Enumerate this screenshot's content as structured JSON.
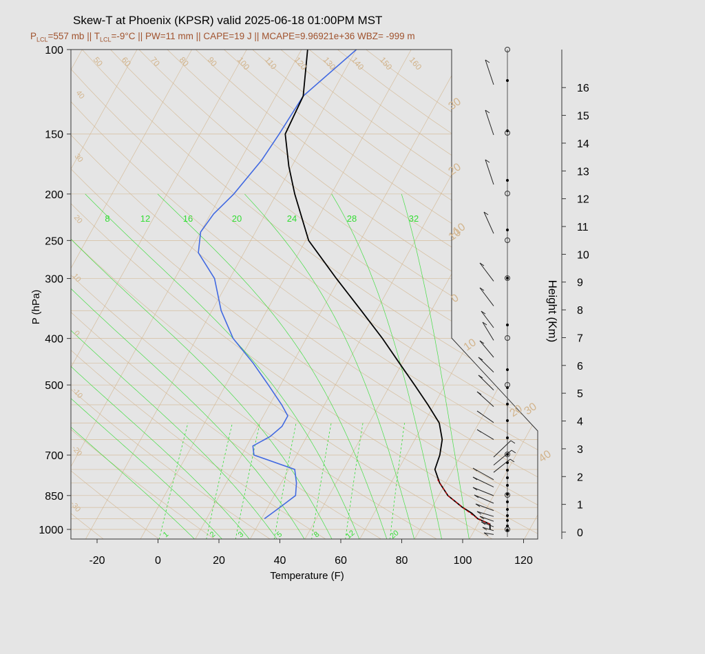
{
  "header": {
    "title": "Skew-T at Phoenix (KPSR) valid 2025-06-18 01:00PM MST",
    "subtitle": "P_LCL=557 mb || T_LCL=-9°C || PW=11 mm || CAPE=19 J || MCAPE=9.96921e+36 WBZ= -999 m"
  },
  "colors": {
    "background": "#e5e5e5",
    "isotherm_dry_adiabat": "#d2b48c",
    "mixing_ratio": "#33dd33",
    "temperature": "#000000",
    "dewpoint": "#4169e1",
    "parcel": "#cc0000",
    "subtitle": "#a0522d"
  },
  "chart_data": {
    "type": "skew-t",
    "xlabel": "Temperature (F)",
    "ylabel": "P (hPa)",
    "y2label": "Height (Km)",
    "xlim": [
      -28,
      125
    ],
    "ylim_hpa": [
      1050,
      100
    ],
    "x_ticks": [
      "-20",
      "0",
      "20",
      "40",
      "60",
      "80",
      "100",
      "120"
    ],
    "x_tick_values": [
      -20,
      0,
      20,
      40,
      60,
      80,
      100,
      120
    ],
    "p_ticks": [
      "100",
      "150",
      "200",
      "250",
      "300",
      "400",
      "500",
      "700",
      "850",
      "1000"
    ],
    "p_tick_values": [
      100,
      150,
      200,
      250,
      300,
      400,
      500,
      700,
      850,
      1000
    ],
    "height_ticks": [
      "0",
      "1",
      "2",
      "3",
      "4",
      "5",
      "6",
      "7",
      "8",
      "9",
      "10",
      "11",
      "12",
      "13",
      "14",
      "15",
      "16"
    ],
    "isotherm_labels": [
      "-10",
      "0",
      "10",
      "20",
      "30",
      "40"
    ],
    "isotherm_label_values": [
      -10,
      0,
      10,
      20,
      30,
      40
    ],
    "theta_labels": [
      "50",
      "60",
      "70",
      "80",
      "90",
      "100",
      "110",
      "120",
      "130",
      "140",
      "150",
      "160"
    ],
    "theta_left_labels": [
      "40",
      "30",
      "20",
      "10",
      "0",
      "-10",
      "-20",
      "-30"
    ],
    "mixing_ratio_top_labels": [
      "8",
      "12",
      "16",
      "20",
      "24",
      "28",
      "32"
    ],
    "mixing_ratio_bottom_labels": [
      "1",
      "2",
      "3",
      "5",
      "8",
      "12",
      "20"
    ],
    "temperature_series": {
      "p": [
        1000,
        975,
        950,
        925,
        900,
        850,
        800,
        750,
        700,
        650,
        600,
        550,
        500,
        450,
        400,
        350,
        300,
        250,
        200,
        175,
        150,
        125,
        100
      ],
      "t_f": [
        109,
        108,
        103,
        100,
        96,
        89,
        84,
        80,
        79,
        77,
        73,
        66,
        58,
        49,
        39,
        27,
        13,
        -3,
        -16,
        -23,
        -30,
        -31,
        -38
      ]
    },
    "dewpoint_series": {
      "p": [
        950,
        900,
        850,
        800,
        750,
        700,
        670,
        640,
        610,
        580,
        550,
        500,
        450,
        400,
        350,
        300,
        265,
        240,
        220,
        200,
        170,
        150,
        125,
        100
      ],
      "td_f": [
        33,
        36,
        39,
        37,
        34,
        18,
        16,
        20,
        22,
        22,
        18,
        10,
        1,
        -10,
        -19,
        -27,
        -37,
        -40,
        -39,
        -36,
        -33,
        -32,
        -31,
        -22
      ]
    },
    "parcel_series": {
      "p": [
        975,
        950,
        900,
        850,
        800,
        780
      ],
      "t_f": [
        108,
        103,
        96,
        89,
        84,
        82
      ]
    }
  }
}
